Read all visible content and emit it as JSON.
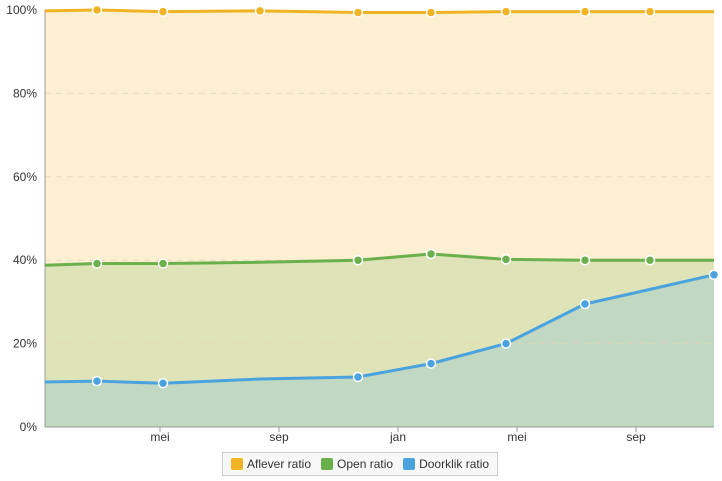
{
  "chart_data": {
    "type": "area",
    "x_ticks": [
      "mei",
      "sep",
      "jan",
      "mei",
      "sep"
    ],
    "y_ticks": [
      "0%",
      "20%",
      "40%",
      "60%",
      "80%",
      "100%"
    ],
    "ylim": [
      0,
      100
    ],
    "grid": true,
    "legend_position": "bottom",
    "x": [
      0,
      1,
      2,
      3,
      4,
      5,
      6,
      7,
      8,
      9
    ],
    "series": [
      {
        "name": "Aflever ratio",
        "color": "#f0b323",
        "fill": "#fcefd2",
        "values": [
          99.8,
          100,
          99.6,
          99.8,
          99.4,
          99.4,
          99.6,
          99.6,
          99.6,
          99.6
        ],
        "point_indices": [
          1,
          2,
          3,
          4,
          5,
          6,
          7,
          8
        ]
      },
      {
        "name": "Open ratio",
        "color": "#6ab04c",
        "fill": "#dfe3b8",
        "values": [
          38.8,
          39.2,
          39.2,
          39.5,
          40.0,
          41.5,
          40.2,
          40.0,
          40.0,
          40.0
        ],
        "point_indices": [
          1,
          2,
          4,
          5,
          6,
          7,
          8
        ]
      },
      {
        "name": "Doorklik ratio",
        "color": "#4aa3df",
        "fill": "#c1d8c2",
        "values": [
          10.8,
          11.0,
          10.5,
          11.5,
          12.0,
          15.2,
          20.0,
          29.5,
          33.0,
          36.5
        ],
        "point_indices": [
          1,
          2,
          4,
          5,
          6,
          7,
          9
        ]
      }
    ]
  }
}
